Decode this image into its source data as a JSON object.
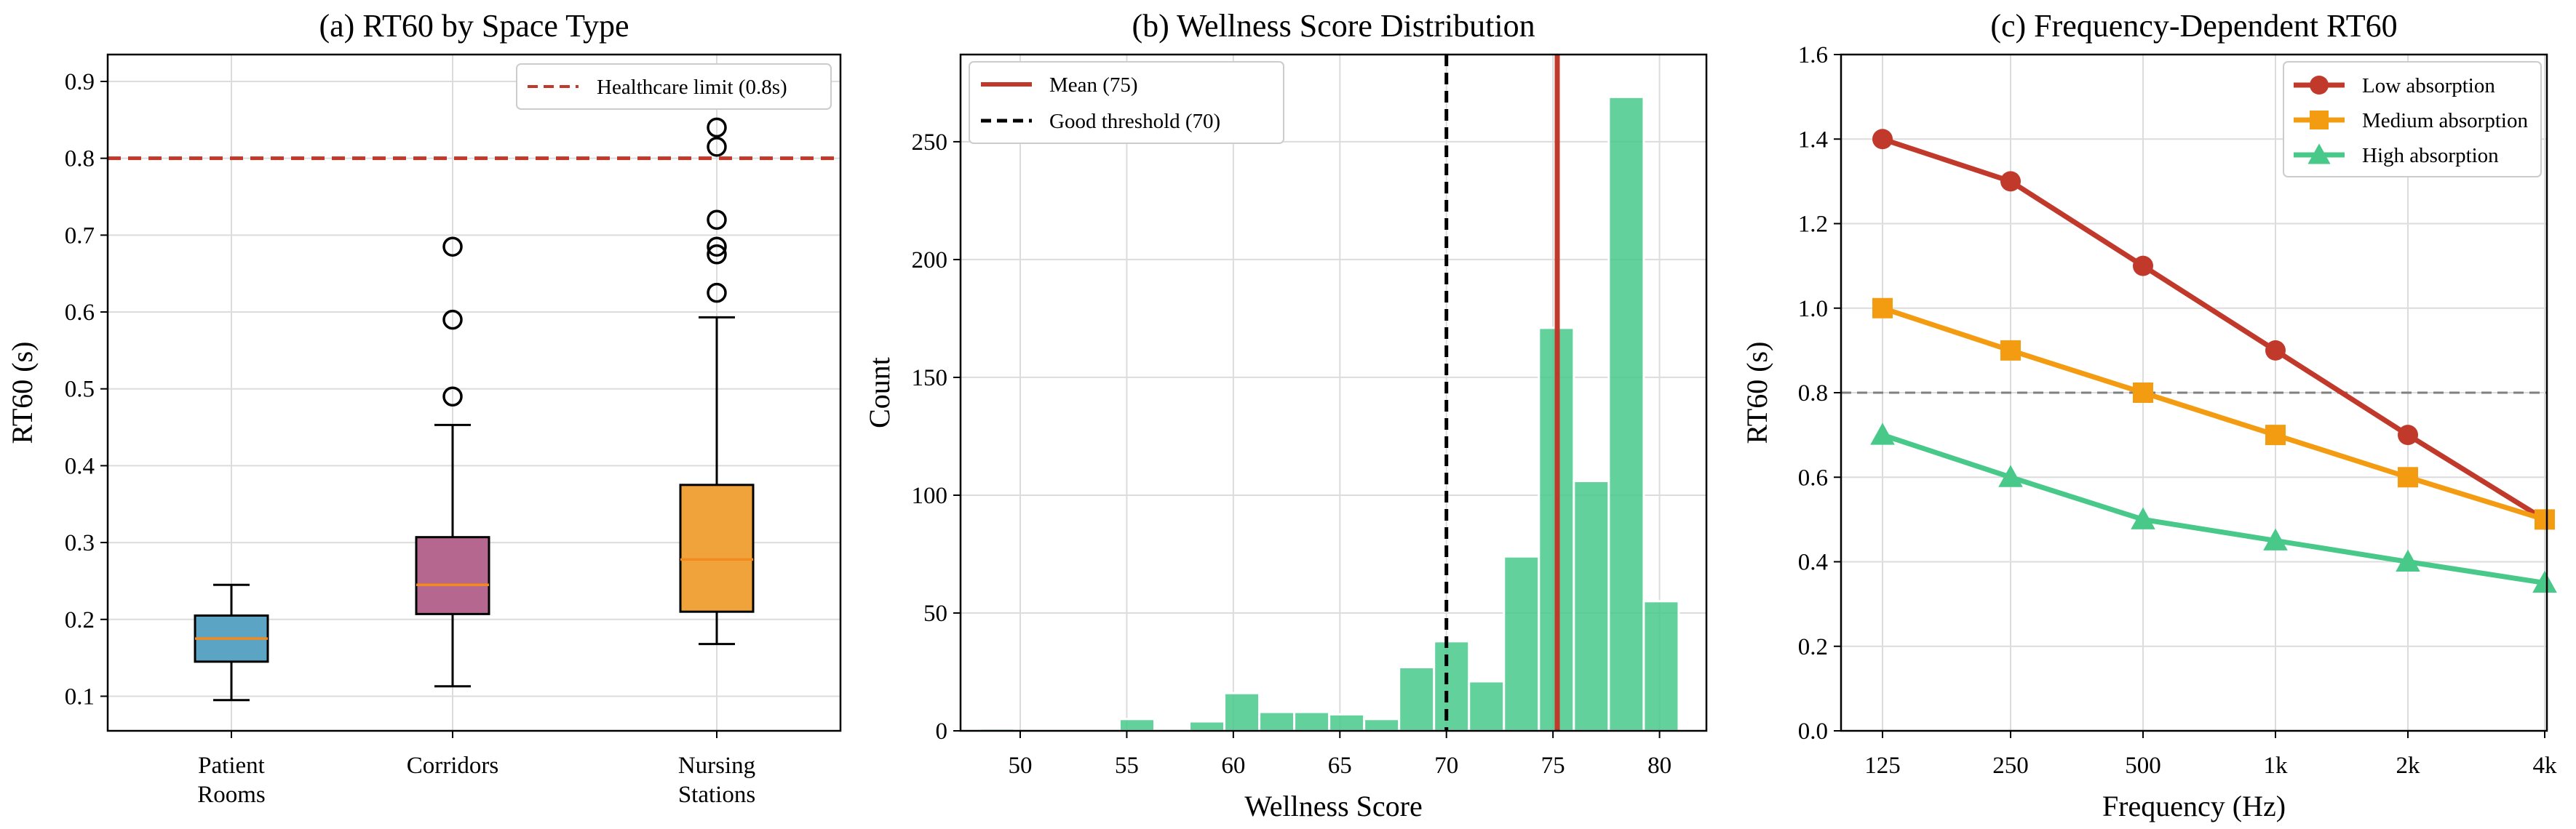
{
  "colors": {
    "red": "#c0392b",
    "orange": "#f39c12",
    "green": "#48c98a",
    "blue": "#5ba4c4",
    "mauve": "#b5678f",
    "amber": "#f0a33a",
    "median": "#f28a1e",
    "gray": "#808080"
  },
  "chart_data": [
    {
      "type": "box",
      "title": "(a) RT60 by Space Type",
      "xlabel": "",
      "ylabel": "RT60 (s)",
      "ylim": [
        0.055,
        0.935
      ],
      "yticks": [
        0.1,
        0.2,
        0.3,
        0.4,
        0.5,
        0.6,
        0.7,
        0.8,
        0.9
      ],
      "ytick_labels": [
        "0.1",
        "0.2",
        "0.3",
        "0.4",
        "0.5",
        "0.6",
        "0.7",
        "0.8",
        "0.9"
      ],
      "categories": [
        [
          "Patient",
          "Rooms"
        ],
        [
          "Corridors"
        ],
        [
          "Nursing",
          "Stations"
        ]
      ],
      "boxes": [
        {
          "name": "Patient Rooms",
          "whisker_low": 0.095,
          "q1": 0.145,
          "median": 0.175,
          "q3": 0.205,
          "whisker_high": 0.245,
          "outliers": [],
          "color": "#5ba4c4"
        },
        {
          "name": "Corridors",
          "whisker_low": 0.113,
          "q1": 0.207,
          "median": 0.245,
          "q3": 0.307,
          "whisker_high": 0.453,
          "outliers": [
            0.49,
            0.59,
            0.685
          ],
          "color": "#b5678f"
        },
        {
          "name": "Nursing Stations",
          "whisker_low": 0.168,
          "q1": 0.21,
          "median": 0.278,
          "q3": 0.375,
          "whisker_high": 0.593,
          "outliers": [
            0.625,
            0.675,
            0.685,
            0.72,
            0.815,
            0.84
          ],
          "color": "#f0a33a"
        }
      ],
      "reference_line": {
        "value": 0.8,
        "label": "Healthcare limit (0.8s)"
      },
      "legend_position": "top-right"
    },
    {
      "type": "histogram",
      "title": "(b) Wellness Score Distribution",
      "xlabel": "Wellness Score",
      "ylabel": "Count",
      "xlim": [
        47.2,
        82.2
      ],
      "ylim": [
        0,
        287
      ],
      "xticks": [
        50,
        55,
        60,
        65,
        70,
        75,
        80
      ],
      "xtick_labels": [
        "50",
        "55",
        "60",
        "65",
        "70",
        "75",
        "80"
      ],
      "yticks": [
        0,
        50,
        100,
        150,
        200,
        250
      ],
      "ytick_labels": [
        "0",
        "50",
        "100",
        "150",
        "200",
        "250"
      ],
      "bin_start": 48.1,
      "bin_width": 1.64,
      "counts": [
        1,
        0,
        0,
        0,
        5,
        0,
        4,
        16,
        8,
        8,
        7,
        5,
        27,
        38,
        21,
        74,
        171,
        106,
        269,
        55
      ],
      "mean": {
        "value": 75.2,
        "label": "Mean (75)"
      },
      "threshold": {
        "value": 70,
        "label": "Good threshold (70)"
      },
      "legend_position": "top-left"
    },
    {
      "type": "line",
      "title": "(c) Frequency-Dependent RT60",
      "xlabel": "Frequency (Hz)",
      "ylabel": "RT60 (s)",
      "categories": [
        "125",
        "250",
        "500",
        "1k",
        "2k",
        "4k"
      ],
      "ylim": [
        0,
        1.6
      ],
      "yticks": [
        0.0,
        0.2,
        0.4,
        0.6,
        0.8,
        1.0,
        1.2,
        1.4,
        1.6
      ],
      "ytick_labels": [
        "0.0",
        "0.2",
        "0.4",
        "0.6",
        "0.8",
        "1.0",
        "1.2",
        "1.4",
        "1.6"
      ],
      "series": [
        {
          "name": "Low absorption",
          "values": [
            1.4,
            1.3,
            1.1,
            0.9,
            0.7,
            0.5
          ],
          "color": "#c0392b",
          "marker": "circle"
        },
        {
          "name": "Medium absorption",
          "values": [
            1.0,
            0.9,
            0.8,
            0.7,
            0.6,
            0.5
          ],
          "color": "#f39c12",
          "marker": "square"
        },
        {
          "name": "High absorption",
          "values": [
            0.7,
            0.6,
            0.5,
            0.45,
            0.4,
            0.35
          ],
          "color": "#48c98a",
          "marker": "triangle"
        }
      ],
      "reference_line": {
        "value": 0.8
      },
      "legend_position": "top-right"
    }
  ]
}
